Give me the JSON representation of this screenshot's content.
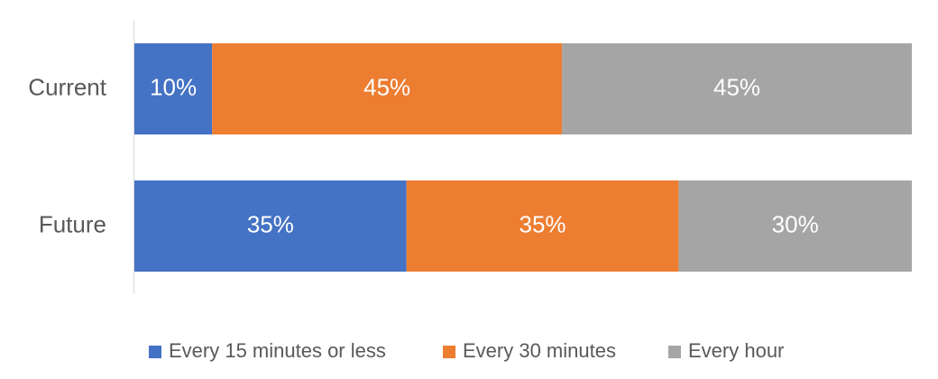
{
  "chart_data": {
    "type": "bar",
    "orientation": "horizontal",
    "stacked": true,
    "normalized_percent": true,
    "categories": [
      "Current",
      "Future"
    ],
    "series": [
      {
        "name": "Every 15 minutes or less",
        "values": [
          10,
          35
        ],
        "labels": [
          "10%",
          "35%"
        ],
        "color": "#4472c4"
      },
      {
        "name": "Every 30 minutes",
        "values": [
          45,
          35
        ],
        "labels": [
          "45%",
          "35%"
        ],
        "color": "#ed7d31"
      },
      {
        "name": "Every hour",
        "values": [
          45,
          30
        ],
        "labels": [
          "45%",
          "30%"
        ],
        "color": "#a5a5a5"
      }
    ],
    "xlim": [
      0,
      100
    ],
    "grid": false,
    "legend_position": "bottom",
    "title": "",
    "xlabel": "",
    "ylabel": ""
  }
}
